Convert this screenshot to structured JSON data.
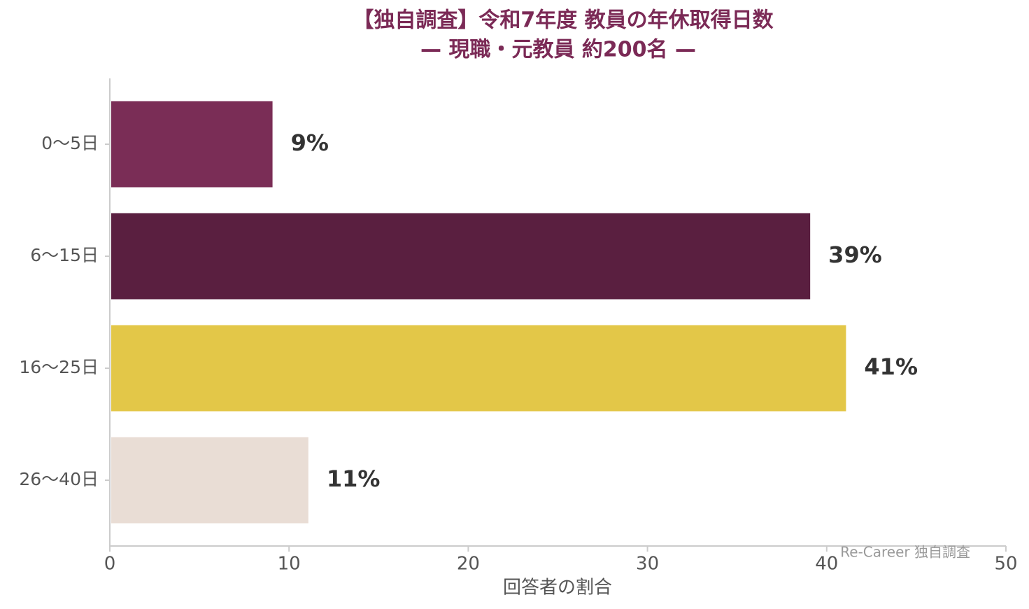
{
  "chart_data": {
    "type": "bar",
    "orientation": "horizontal",
    "title": "【独自調査】令和7年度 教員の年休取得日数",
    "subtitle": "— 現職・元教員 約200名 —",
    "categories": [
      "0〜5日",
      "6〜15日",
      "16〜25日",
      "26〜40日"
    ],
    "values": [
      9,
      39,
      41,
      11
    ],
    "value_labels": [
      "9%",
      "39%",
      "41%",
      "11%"
    ],
    "colors": [
      "#7a2d56",
      "#5a1f40",
      "#e3c748",
      "#e9ddd5"
    ],
    "xlim": [
      0,
      50
    ],
    "xticks": [
      0,
      10,
      20,
      30,
      40,
      50
    ],
    "xlabel": "回答者の割合",
    "annotation": "Re-Career 独自調査",
    "grid": false
  }
}
